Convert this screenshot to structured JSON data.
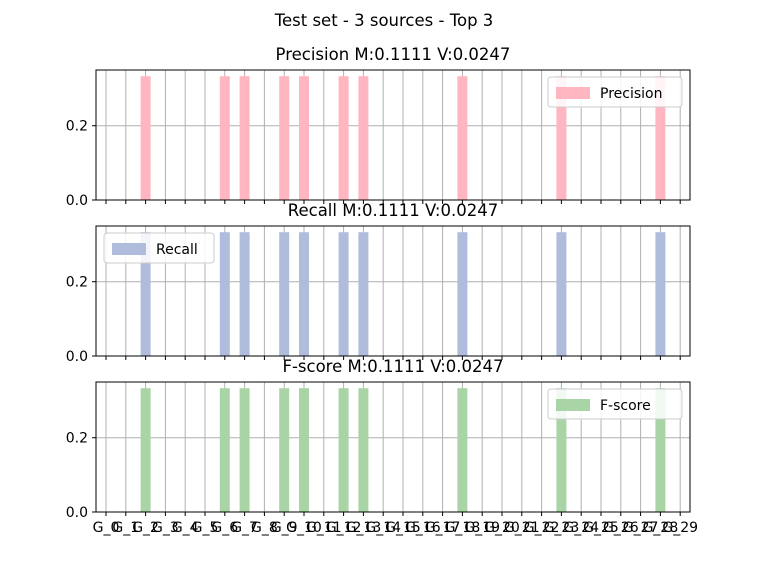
{
  "figure": {
    "suptitle": "Test set - 3 sources - Top 3"
  },
  "chart_data": [
    {
      "type": "bar",
      "title": "Precision M:0.1111 V:0.0247",
      "xlabel": "",
      "ylabel": "",
      "ylim": [
        0,
        0.35
      ],
      "yticks": [
        0.0,
        0.2
      ],
      "grid": true,
      "legend_position": "upper-right",
      "color": "#FFB6C1",
      "series": [
        {
          "name": "Precision",
          "values": [
            0,
            0,
            0.3333,
            0,
            0,
            0,
            0.3333,
            0.3333,
            0,
            0.3333,
            0.3333,
            0,
            0.3333,
            0.3333,
            0,
            0,
            0,
            0,
            0.3333,
            0,
            0,
            0,
            0,
            0.3333,
            0,
            0,
            0,
            0,
            0.3333,
            0
          ]
        }
      ]
    },
    {
      "type": "bar",
      "title": "Recall M:0.1111 V:0.0247",
      "xlabel": "",
      "ylabel": "",
      "ylim": [
        0,
        0.35
      ],
      "yticks": [
        0.0,
        0.2
      ],
      "grid": true,
      "legend_position": "upper-left",
      "color": "#B0BCDC",
      "series": [
        {
          "name": "Recall",
          "values": [
            0,
            0,
            0.3333,
            0,
            0,
            0,
            0.3333,
            0.3333,
            0,
            0.3333,
            0.3333,
            0,
            0.3333,
            0.3333,
            0,
            0,
            0,
            0,
            0.3333,
            0,
            0,
            0,
            0,
            0.3333,
            0,
            0,
            0,
            0,
            0.3333,
            0
          ]
        }
      ]
    },
    {
      "type": "bar",
      "title": "F-score M:0.1111 V:0.0247",
      "xlabel": "",
      "ylabel": "",
      "ylim": [
        0,
        0.35
      ],
      "yticks": [
        0.0,
        0.2
      ],
      "grid": true,
      "legend_position": "upper-right",
      "color": "#A9D4A5",
      "categories": [
        "G_0",
        "G_1",
        "G_2",
        "G_3",
        "G_4",
        "G_5",
        "G_6",
        "G_7",
        "G_8",
        "G_9",
        "G_10",
        "G_11",
        "G_12",
        "G_13",
        "G_14",
        "G_15",
        "G_16",
        "G_17",
        "G_18",
        "G_19",
        "G_20",
        "G_21",
        "G_22",
        "G_23",
        "G_24",
        "G_25",
        "G_26",
        "G_27",
        "G_28",
        "G_29"
      ],
      "series": [
        {
          "name": "F-score",
          "values": [
            0,
            0,
            0.3333,
            0,
            0,
            0,
            0.3333,
            0.3333,
            0,
            0.3333,
            0.3333,
            0,
            0.3333,
            0.3333,
            0,
            0,
            0,
            0,
            0.3333,
            0,
            0,
            0,
            0,
            0.3333,
            0,
            0,
            0,
            0,
            0.3333,
            0
          ]
        }
      ]
    }
  ]
}
